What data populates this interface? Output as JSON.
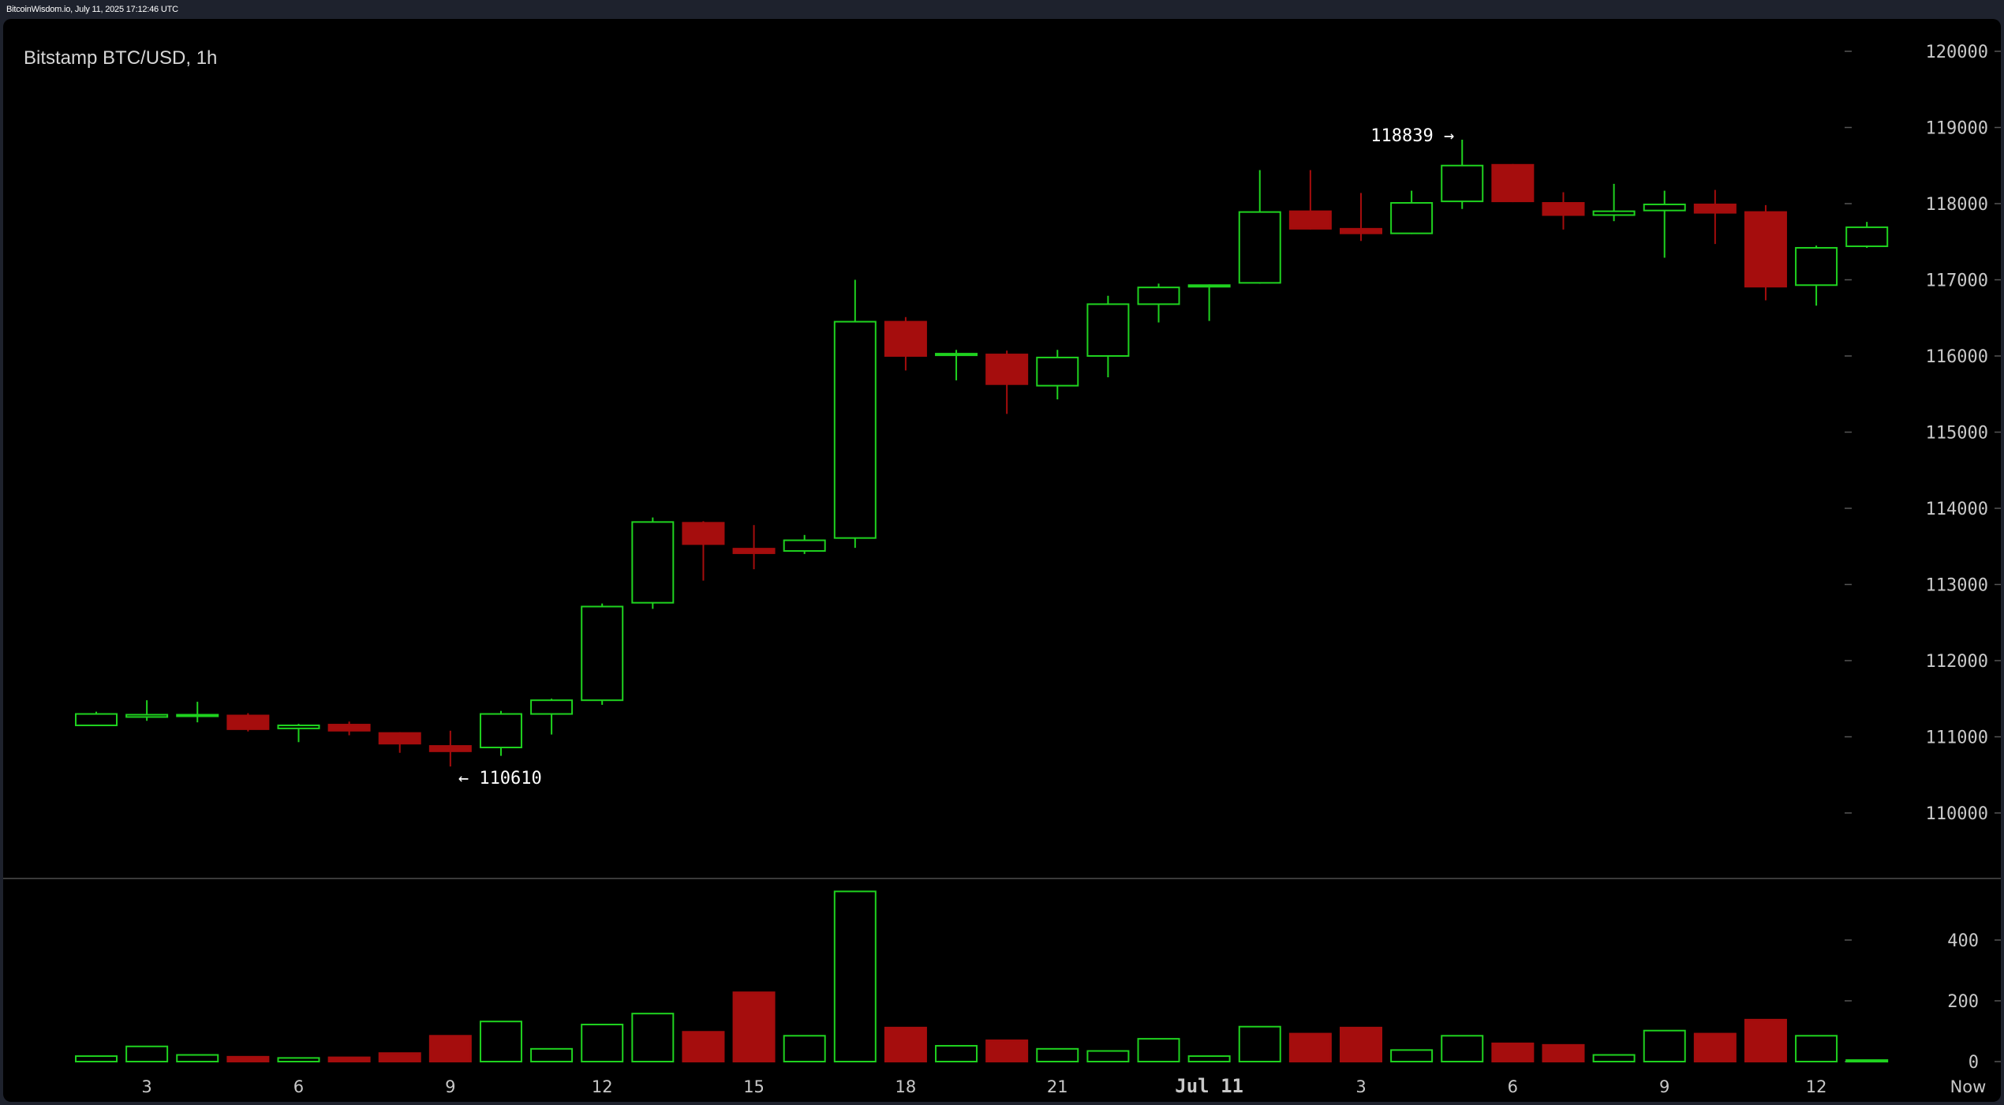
{
  "header": {
    "caption": "BitcoinWisdom.io, July 11, 2025 17:12:46 UTC"
  },
  "chart_title": "Bitstamp BTC/USD, 1h",
  "colors": {
    "up": "#1fd21f",
    "down": "#a50d0d",
    "panel_background": "#000000",
    "page_background": "#1e222d",
    "axis_text": "#c8c8c8",
    "annotation_text": "#ffffff"
  },
  "chart_data": [
    {
      "type": "candlestick",
      "title": "Bitstamp BTC/USD, 1h",
      "xlabel": "",
      "ylabel": "",
      "ylim": [
        109000,
        120500
      ],
      "y_ticks": [
        110000,
        111000,
        112000,
        113000,
        114000,
        115000,
        116000,
        117000,
        118000,
        119000,
        120000
      ],
      "x_ticks": [
        {
          "index": 1,
          "label": "3"
        },
        {
          "index": 4,
          "label": "6"
        },
        {
          "index": 7,
          "label": "9"
        },
        {
          "index": 10,
          "label": "12"
        },
        {
          "index": 13,
          "label": "15"
        },
        {
          "index": 16,
          "label": "18"
        },
        {
          "index": 19,
          "label": "21"
        },
        {
          "index": 22,
          "label": "Jul 11",
          "emphasis": true
        },
        {
          "index": 25,
          "label": "3"
        },
        {
          "index": 28,
          "label": "6"
        },
        {
          "index": 31,
          "label": "9"
        },
        {
          "index": 34,
          "label": "12"
        },
        {
          "index": 37,
          "label": "Now"
        }
      ],
      "candles": [
        {
          "open": 111150,
          "high": 111330,
          "low": 111140,
          "close": 111300
        },
        {
          "open": 111260,
          "high": 111480,
          "low": 111210,
          "close": 111290
        },
        {
          "open": 111270,
          "high": 111460,
          "low": 111190,
          "close": 111290
        },
        {
          "open": 111280,
          "high": 111310,
          "low": 111070,
          "close": 111100
        },
        {
          "open": 111110,
          "high": 111170,
          "low": 110930,
          "close": 111150
        },
        {
          "open": 111160,
          "high": 111200,
          "low": 111020,
          "close": 111080
        },
        {
          "open": 111050,
          "high": 111060,
          "low": 110790,
          "close": 110910
        },
        {
          "open": 110880,
          "high": 111080,
          "low": 110610,
          "close": 110810
        },
        {
          "open": 110860,
          "high": 111340,
          "low": 110750,
          "close": 111300
        },
        {
          "open": 111300,
          "high": 111500,
          "low": 111030,
          "close": 111480
        },
        {
          "open": 111480,
          "high": 112750,
          "low": 111420,
          "close": 112710
        },
        {
          "open": 112760,
          "high": 113880,
          "low": 112680,
          "close": 113820
        },
        {
          "open": 113810,
          "high": 113830,
          "low": 113050,
          "close": 113530
        },
        {
          "open": 113470,
          "high": 113780,
          "low": 113200,
          "close": 113410
        },
        {
          "open": 113440,
          "high": 113650,
          "low": 113400,
          "close": 113580
        },
        {
          "open": 113610,
          "high": 117000,
          "low": 113480,
          "close": 116450
        },
        {
          "open": 116450,
          "high": 116510,
          "low": 115810,
          "close": 116000
        },
        {
          "open": 116020,
          "high": 116080,
          "low": 115680,
          "close": 116030
        },
        {
          "open": 116020,
          "high": 116070,
          "low": 115240,
          "close": 115630
        },
        {
          "open": 115610,
          "high": 116080,
          "low": 115430,
          "close": 115980
        },
        {
          "open": 116000,
          "high": 116790,
          "low": 115720,
          "close": 116680
        },
        {
          "open": 116680,
          "high": 116950,
          "low": 116440,
          "close": 116900
        },
        {
          "open": 116920,
          "high": 116940,
          "low": 116460,
          "close": 116930
        },
        {
          "open": 116960,
          "high": 118440,
          "low": 116950,
          "close": 117890
        },
        {
          "open": 117900,
          "high": 118440,
          "low": 117660,
          "close": 117670
        },
        {
          "open": 117670,
          "high": 118140,
          "low": 117510,
          "close": 117610
        },
        {
          "open": 117610,
          "high": 118170,
          "low": 117600,
          "close": 118010
        },
        {
          "open": 118030,
          "high": 118839,
          "low": 117930,
          "close": 118500
        },
        {
          "open": 118510,
          "high": 118520,
          "low": 118020,
          "close": 118030
        },
        {
          "open": 118010,
          "high": 118150,
          "low": 117660,
          "close": 117850
        },
        {
          "open": 117850,
          "high": 118260,
          "low": 117770,
          "close": 117900
        },
        {
          "open": 117910,
          "high": 118170,
          "low": 117290,
          "close": 117990
        },
        {
          "open": 117990,
          "high": 118180,
          "low": 117470,
          "close": 117880
        },
        {
          "open": 117890,
          "high": 117980,
          "low": 116730,
          "close": 116910
        },
        {
          "open": 116930,
          "high": 117450,
          "low": 116660,
          "close": 117420
        },
        {
          "open": 117440,
          "high": 117760,
          "low": 117420,
          "close": 117690
        }
      ],
      "annotations": [
        {
          "label": "118839 →",
          "candle_index": 27,
          "value": 118839,
          "side": "left"
        },
        {
          "label": "← 110610",
          "candle_index": 7,
          "value": 110610,
          "side": "right"
        }
      ]
    },
    {
      "type": "bar",
      "title": "",
      "ylim": [
        0,
        560
      ],
      "y_ticks": [
        0,
        200,
        400
      ],
      "series": [
        {
          "values": [
            18,
            50,
            22,
            16,
            12,
            14,
            28,
            85,
            132,
            42,
            122,
            158,
            98,
            228,
            85,
            560,
            112,
            52,
            70,
            42,
            35,
            75,
            18,
            115,
            92,
            112,
            38,
            85,
            60,
            55,
            22,
            102,
            92,
            138,
            85,
            5
          ],
          "direction": [
            "up",
            "up",
            "up",
            "down",
            "up",
            "down",
            "down",
            "down",
            "up",
            "up",
            "up",
            "up",
            "down",
            "down",
            "up",
            "up",
            "down",
            "up",
            "down",
            "up",
            "up",
            "up",
            "up",
            "up",
            "down",
            "down",
            "up",
            "up",
            "down",
            "down",
            "up",
            "up",
            "down",
            "down",
            "up",
            "up"
          ]
        }
      ]
    }
  ]
}
